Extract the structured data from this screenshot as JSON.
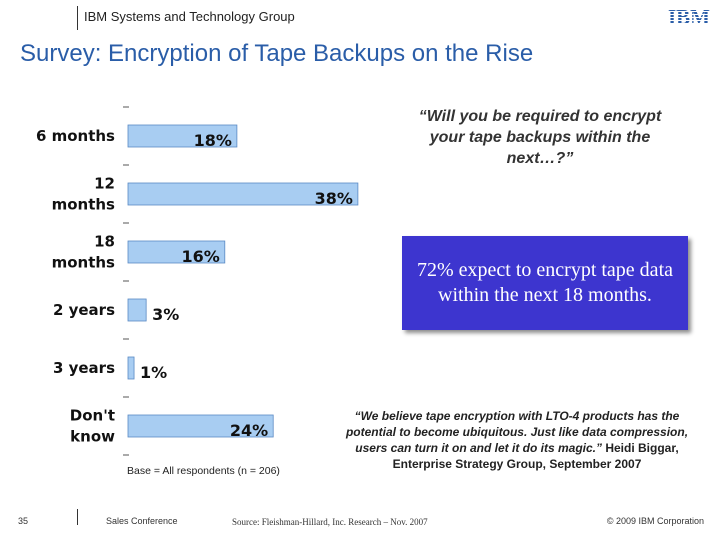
{
  "header": {
    "group": "IBM Systems and Technology Group",
    "logo_text": "IBM"
  },
  "title": "Survey:  Encryption of Tape Backups on the Rise",
  "question": "“Will you be required to encrypt your tape backups within the next…?”",
  "callout": {
    "text": "72% expect to encrypt tape data within the next 18 months.",
    "color": "#3d35cf"
  },
  "quote": {
    "text": "“We believe tape encryption with LTO-4 products has the potential to become ubiquitous. Just like data compression, users can turn it on and let it do its magic.”",
    "attribution": " Heidi Biggar, Enterprise Strategy Group, September 2007"
  },
  "base_note": "Base = All respondents (n = 206)",
  "footer": {
    "page": "35",
    "conference": "Sales Conference",
    "source": "Source: Fleishman-Hillard, Inc. Research – Nov. 2007",
    "copyright": "© 2009 IBM Corporation"
  },
  "chart_data": {
    "type": "bar",
    "orientation": "horizontal",
    "categories": [
      "6 months",
      "12 months",
      "18 months",
      "2 years",
      "3 years",
      "Don't know"
    ],
    "values": [
      18,
      38,
      16,
      3,
      1,
      24
    ],
    "value_labels": [
      "18%",
      "38%",
      "16%",
      "3%",
      "1%",
      "24%"
    ],
    "xlim": [
      0,
      40
    ],
    "bar_color": "#a8cdf2",
    "bar_edge_color": "#5a89c4"
  }
}
